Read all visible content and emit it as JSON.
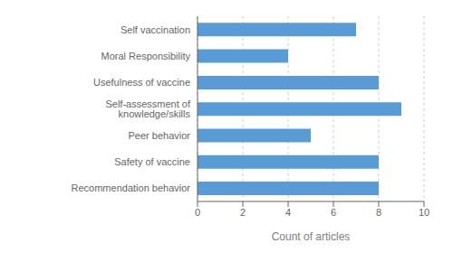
{
  "chart_data": {
    "type": "bar",
    "orientation": "horizontal",
    "categories": [
      "Recommendation behavior",
      "Safety of vaccine",
      "Peer behavior",
      "Self-assessment of knowledge/skills",
      "Usefulness of vaccine",
      "Moral Responsibility",
      "Self vaccination"
    ],
    "values": [
      8,
      8,
      5,
      9,
      8,
      4,
      7
    ],
    "color": "#5b9bd5",
    "xlabel": "Count of articles",
    "xlim": [
      0,
      10
    ],
    "xticks": [
      0,
      2,
      4,
      6,
      8,
      10
    ],
    "grid": true
  }
}
